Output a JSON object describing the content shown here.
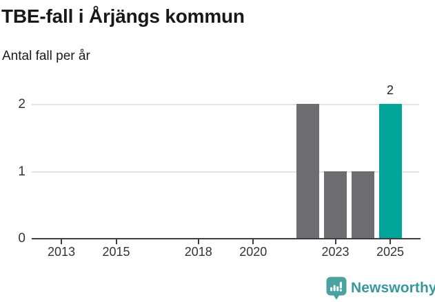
{
  "header": {
    "title": "TBE-fall i Årjängs kommun",
    "subtitle": "Antal fall per år"
  },
  "chart_data": {
    "type": "bar",
    "title": "TBE-fall i Årjängs kommun",
    "ylabel": "Antal fall per år",
    "bars": [
      {
        "year": 2022,
        "value": 2,
        "color": "#6d6d71"
      },
      {
        "year": 2023,
        "value": 1,
        "color": "#6d6d71"
      },
      {
        "year": 2024,
        "value": 1,
        "color": "#6d6d71"
      },
      {
        "year": 2025,
        "value": 2,
        "color": "#00a499",
        "label": "2"
      }
    ],
    "x_ticks": [
      "2013",
      "2015",
      "2018",
      "2020",
      "2023",
      "2025"
    ],
    "x_tick_years": [
      2013,
      2015,
      2018,
      2020,
      2023,
      2025
    ],
    "y_ticks": [
      0,
      1,
      2
    ],
    "ylim": [
      0,
      2
    ],
    "grid": "horizontal",
    "legend": "none",
    "colors": {
      "default_bar": "#6d6d71",
      "highlight_bar": "#00a499",
      "gridline": "#e2e2e2",
      "axis": "#3d3d3d",
      "brand": "#379899",
      "brand_icon": "#4aa2a1"
    }
  },
  "footer": {
    "brand": "Newsworthy",
    "logo_icon": "bar-chart-speech-bubble-icon"
  }
}
